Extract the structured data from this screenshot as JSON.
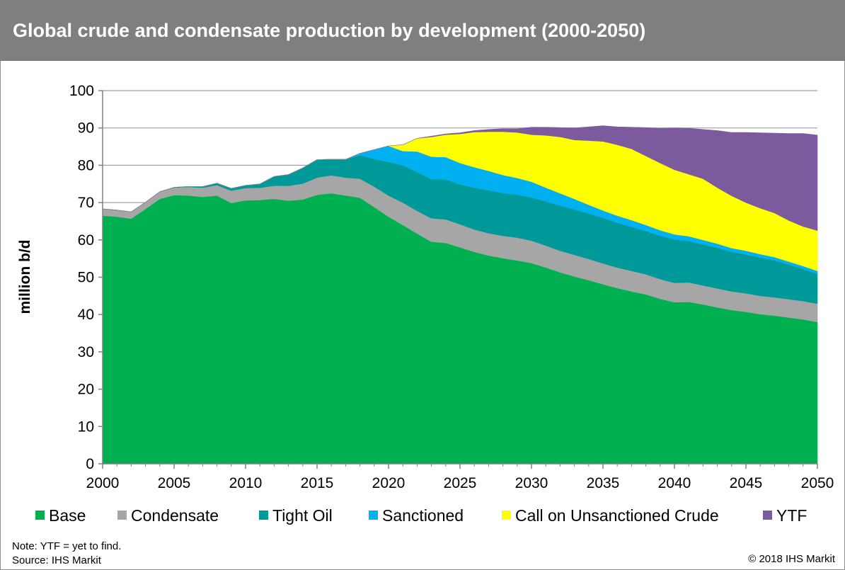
{
  "header": {
    "title": "Global crude and condensate production by development (2000-2050)"
  },
  "footer": {
    "note": "Note: YTF = yet to find.",
    "source": "Source: IHS Markit",
    "copyright": "© 2018 IHS Markit"
  },
  "chart_data": {
    "type": "area",
    "stacked": true,
    "title": "Global crude and condensate production by development (2000-2050)",
    "xlabel": "",
    "ylabel": "million b/d",
    "xlim": [
      2000,
      2050
    ],
    "ylim": [
      0,
      100
    ],
    "x_ticks": [
      2000,
      2005,
      2010,
      2015,
      2020,
      2025,
      2030,
      2035,
      2040,
      2045,
      2050
    ],
    "y_ticks": [
      0,
      10,
      20,
      30,
      40,
      50,
      60,
      70,
      80,
      90,
      100
    ],
    "grid": "horizontal",
    "legend_position": "bottom",
    "x": [
      2000,
      2001,
      2002,
      2003,
      2004,
      2005,
      2006,
      2007,
      2008,
      2009,
      2010,
      2011,
      2012,
      2013,
      2014,
      2015,
      2016,
      2017,
      2018,
      2019,
      2020,
      2021,
      2022,
      2023,
      2024,
      2025,
      2026,
      2027,
      2028,
      2029,
      2030,
      2031,
      2032,
      2033,
      2034,
      2035,
      2036,
      2037,
      2038,
      2039,
      2040,
      2041,
      2042,
      2043,
      2044,
      2045,
      2046,
      2047,
      2048,
      2049,
      2050
    ],
    "series": [
      {
        "name": "Base",
        "color": "#00b050",
        "values": [
          66.5,
          66.2,
          65.7,
          68.3,
          71.0,
          72.0,
          71.9,
          71.5,
          71.9,
          69.9,
          70.6,
          70.7,
          71.0,
          70.5,
          70.8,
          72.1,
          72.5,
          71.9,
          71.3,
          68.8,
          66.2,
          64.0,
          61.7,
          59.5,
          59.2,
          58.0,
          56.8,
          55.8,
          55.1,
          54.5,
          53.8,
          52.6,
          51.3,
          50.2,
          49.2,
          48.1,
          47.1,
          46.2,
          45.4,
          44.2,
          43.3,
          43.4,
          42.7,
          41.9,
          41.2,
          40.7,
          40.1,
          39.7,
          39.2,
          38.7,
          38.0
        ]
      },
      {
        "name": "Condensate",
        "color": "#a6a6a6",
        "values": [
          1.8,
          1.8,
          1.8,
          1.8,
          1.9,
          2.0,
          2.3,
          2.5,
          2.8,
          3.3,
          3.3,
          3.3,
          3.5,
          4.0,
          4.3,
          4.6,
          4.8,
          4.8,
          5.1,
          5.5,
          5.7,
          6.0,
          6.1,
          6.3,
          6.3,
          6.2,
          6.0,
          6.0,
          6.0,
          6.1,
          6.0,
          5.9,
          5.8,
          5.8,
          5.7,
          5.6,
          5.5,
          5.5,
          5.4,
          5.3,
          5.2,
          5.2,
          5.1,
          5.1,
          5.0,
          5.0,
          4.9,
          4.9,
          4.9,
          4.9,
          4.9
        ]
      },
      {
        "name": "Tight Oil",
        "color": "#009999",
        "values": [
          0.0,
          0.0,
          0.0,
          0.0,
          0.0,
          0.1,
          0.1,
          0.3,
          0.5,
          0.6,
          0.7,
          1.0,
          2.5,
          3.0,
          4.2,
          4.8,
          4.3,
          4.9,
          6.3,
          7.4,
          9.0,
          10.0,
          10.4,
          10.5,
          10.7,
          10.7,
          11.2,
          11.5,
          11.5,
          11.5,
          11.6,
          11.8,
          12.1,
          12.2,
          12.2,
          12.2,
          12.0,
          11.8,
          11.6,
          11.6,
          11.6,
          11.1,
          11.0,
          10.9,
          10.6,
          10.4,
          10.3,
          9.9,
          9.3,
          8.6,
          8.0
        ]
      },
      {
        "name": "Sanctioned",
        "color": "#00b0f0",
        "values": [
          0.0,
          0.0,
          0.0,
          0.0,
          0.0,
          0.0,
          0.0,
          0.0,
          0.0,
          0.0,
          0.0,
          0.0,
          0.0,
          0.0,
          0.0,
          0.0,
          0.0,
          0.0,
          0.5,
          2.5,
          4.3,
          3.8,
          5.5,
          6.0,
          6.0,
          5.7,
          5.5,
          5.2,
          4.8,
          4.5,
          4.2,
          3.7,
          3.3,
          2.8,
          2.3,
          2.0,
          1.9,
          1.8,
          1.6,
          1.5,
          1.4,
          1.3,
          1.2,
          1.1,
          1.0,
          1.0,
          0.9,
          0.9,
          0.8,
          0.8,
          0.8
        ]
      },
      {
        "name": "Call on Unsanctioned Crude",
        "color": "#ffff00",
        "values": [
          0.0,
          0.0,
          0.0,
          0.0,
          0.0,
          0.0,
          0.0,
          0.0,
          0.0,
          0.0,
          0.0,
          0.0,
          0.0,
          0.0,
          0.0,
          0.0,
          0.0,
          0.0,
          0.0,
          0.0,
          0.0,
          1.7,
          3.5,
          5.3,
          6.0,
          7.8,
          9.4,
          10.5,
          11.6,
          12.2,
          12.6,
          14.0,
          15.1,
          15.8,
          17.2,
          18.5,
          19.0,
          19.1,
          18.5,
          18.0,
          17.3,
          16.6,
          16.4,
          15.0,
          14.0,
          12.9,
          12.3,
          11.8,
          11.0,
          10.6,
          10.8
        ]
      },
      {
        "name": "YTF",
        "color": "#7b5b9e",
        "values": [
          0.0,
          0.0,
          0.0,
          0.0,
          0.0,
          0.0,
          0.0,
          0.0,
          0.0,
          0.0,
          0.0,
          0.0,
          0.0,
          0.0,
          0.0,
          0.0,
          0.0,
          0.0,
          0.0,
          0.0,
          0.0,
          0.0,
          0.0,
          0.2,
          0.2,
          0.3,
          0.4,
          0.6,
          0.8,
          1.0,
          2.0,
          2.2,
          2.5,
          3.2,
          3.7,
          4.2,
          4.8,
          5.8,
          7.6,
          9.3,
          11.2,
          12.3,
          13.2,
          15.3,
          17.0,
          18.8,
          20.2,
          21.4,
          23.3,
          24.9,
          25.6
        ]
      }
    ]
  }
}
